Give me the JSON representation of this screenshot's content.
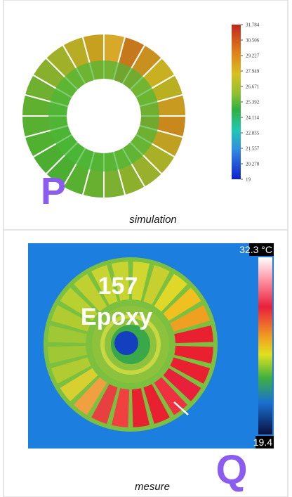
{
  "simulation": {
    "colorbar_labels": [
      "31.784",
      "30.506",
      "29.227",
      "27.949",
      "26.671",
      "25.392",
      "24.114",
      "22.835",
      "21.557",
      "20.278",
      "19"
    ],
    "label": "P",
    "caption": "simulation"
  },
  "measurement": {
    "overlay_number": "157",
    "overlay_material": "Epoxy",
    "scale_max": "32.3 °C",
    "scale_min": "19.4",
    "label": "Q",
    "caption": "mesure"
  }
}
